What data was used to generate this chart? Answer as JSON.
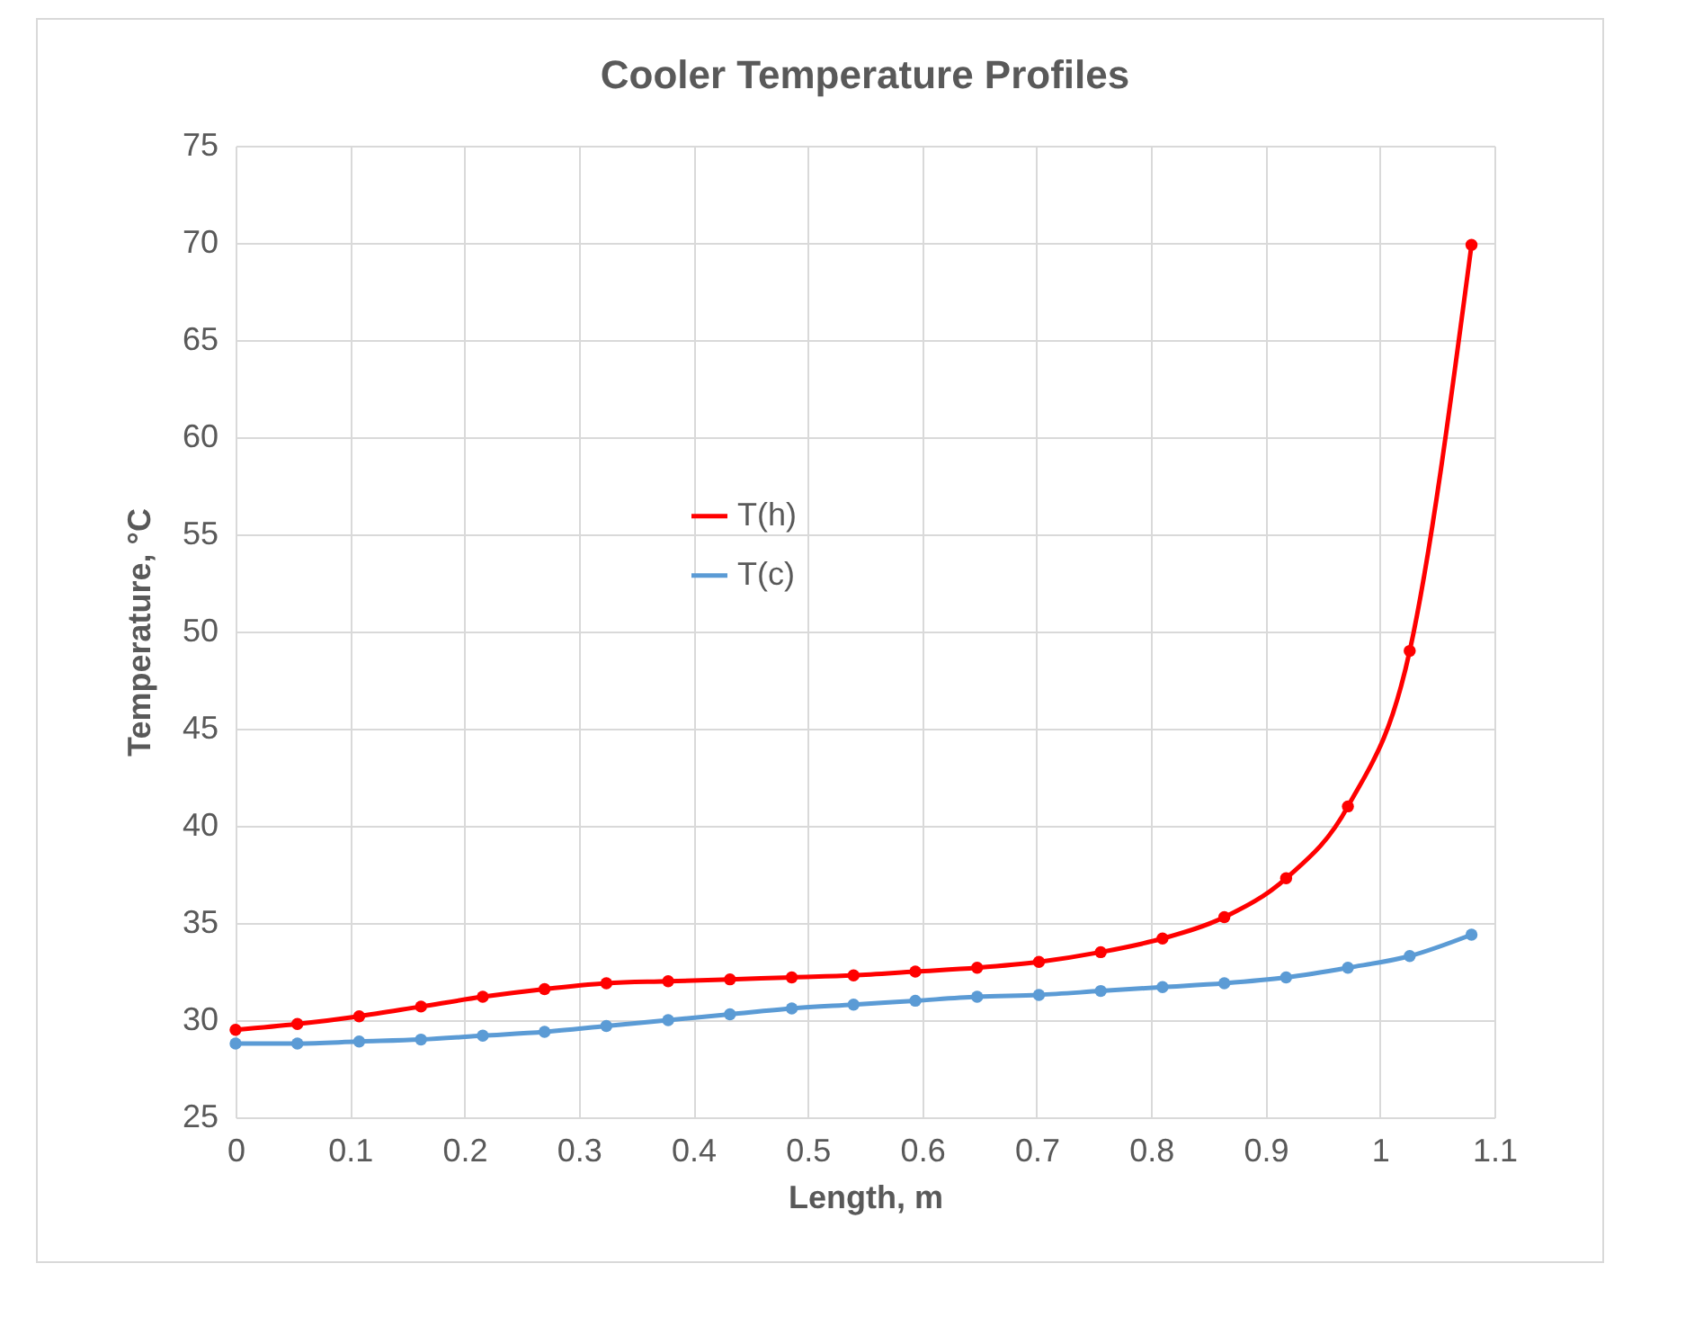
{
  "chart_data": {
    "type": "line",
    "title": "Cooler Temperature Profiles",
    "xlabel": "Length, m",
    "ylabel": "Temperature, °C",
    "x": [
      0,
      0.054,
      0.108,
      0.162,
      0.216,
      0.27,
      0.324,
      0.378,
      0.432,
      0.486,
      0.54,
      0.594,
      0.648,
      0.702,
      0.756,
      0.81,
      0.864,
      0.918,
      0.972,
      1.026,
      1.08
    ],
    "series": [
      {
        "name": "T(h)",
        "color": "#ff0000",
        "values": [
          29.5,
          29.8,
          30.2,
          30.7,
          31.2,
          31.6,
          31.9,
          32.0,
          32.1,
          32.2,
          32.3,
          32.5,
          32.7,
          33.0,
          33.5,
          34.2,
          35.3,
          37.3,
          41.0,
          49.0,
          69.9
        ]
      },
      {
        "name": "T(c)",
        "color": "#5b9bd5",
        "values": [
          28.8,
          28.8,
          28.9,
          29.0,
          29.2,
          29.4,
          29.7,
          30.0,
          30.3,
          30.6,
          30.8,
          31.0,
          31.2,
          31.3,
          31.5,
          31.7,
          31.9,
          32.2,
          32.7,
          33.3,
          34.4
        ]
      }
    ],
    "xlim": [
      0,
      1.1
    ],
    "xticks": [
      0,
      0.1,
      0.2,
      0.3,
      0.4,
      0.5,
      0.6,
      0.7,
      0.8,
      0.9,
      1,
      1.1
    ],
    "ylim": [
      25,
      75
    ],
    "yticks": [
      25,
      30,
      35,
      40,
      45,
      50,
      55,
      60,
      65,
      70,
      75
    ],
    "grid": true,
    "legend": "left",
    "marker": "circle",
    "line_style": "solid"
  }
}
